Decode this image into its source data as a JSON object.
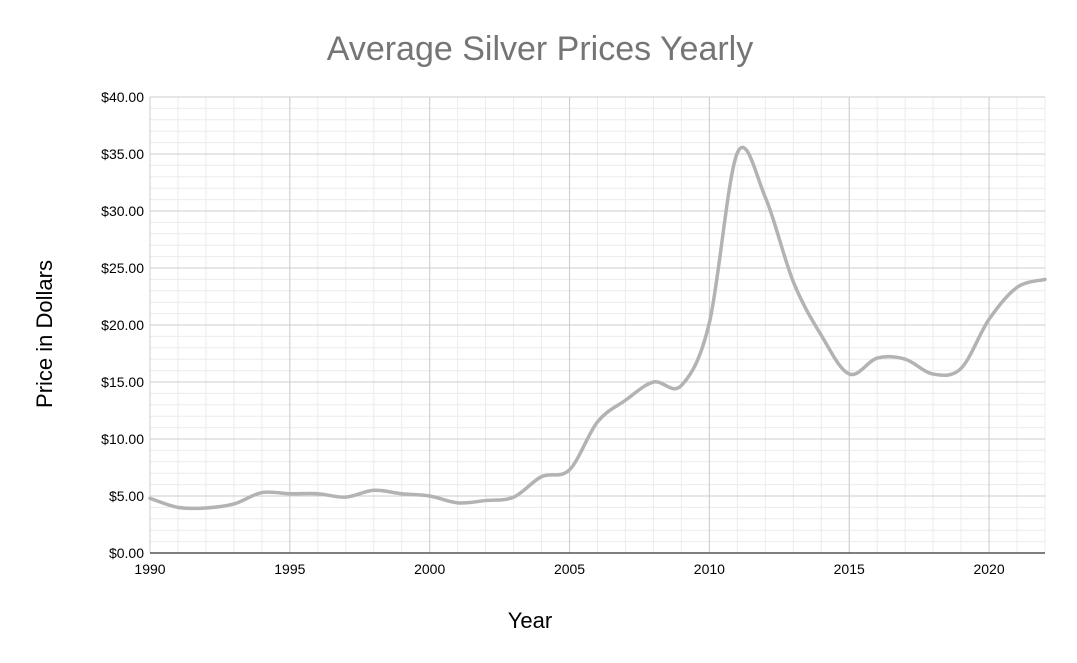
{
  "chart_data": {
    "type": "line",
    "title": "Average Silver Prices Yearly",
    "xlabel": "Year",
    "ylabel": "Price in Dollars",
    "xlim": [
      1990,
      2022
    ],
    "ylim": [
      0,
      40
    ],
    "x_ticks": [
      1990,
      1995,
      2000,
      2005,
      2010,
      2015,
      2020
    ],
    "y_ticks": [
      "$0.00",
      "$5.00",
      "$10.00",
      "$15.00",
      "$20.00",
      "$25.00",
      "$30.00",
      "$35.00",
      "$40.00"
    ],
    "y_tick_values": [
      0,
      5,
      10,
      15,
      20,
      25,
      30,
      35,
      40
    ],
    "grid": true,
    "legend": "none",
    "series": [
      {
        "color": "#b3b3b3",
        "x": [
          1990,
          1991,
          1992,
          1993,
          1994,
          1995,
          1996,
          1997,
          1998,
          1999,
          2000,
          2001,
          2002,
          2003,
          2004,
          2005,
          2006,
          2007,
          2008,
          2009,
          2010,
          2011,
          2012,
          2013,
          2014,
          2015,
          2016,
          2017,
          2018,
          2019,
          2020,
          2021,
          2022
        ],
        "values": [
          4.8,
          4.0,
          3.95,
          4.3,
          5.3,
          5.2,
          5.2,
          4.9,
          5.5,
          5.2,
          5.0,
          4.4,
          4.6,
          4.9,
          6.7,
          7.3,
          11.5,
          13.4,
          15.0,
          14.7,
          20.2,
          35.1,
          31.2,
          23.8,
          19.1,
          15.7,
          17.1,
          17.0,
          15.7,
          16.2,
          20.5,
          23.3,
          24.0
        ]
      }
    ]
  }
}
